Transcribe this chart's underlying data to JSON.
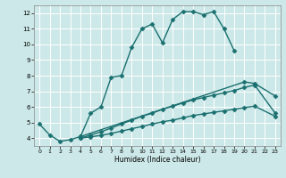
{
  "xlabel": "Humidex (Indice chaleur)",
  "xlim": [
    -0.5,
    23.5
  ],
  "ylim": [
    3.5,
    12.5
  ],
  "xticks": [
    0,
    1,
    2,
    3,
    4,
    5,
    6,
    7,
    8,
    9,
    10,
    11,
    12,
    13,
    14,
    15,
    16,
    17,
    18,
    19,
    20,
    21,
    22,
    23
  ],
  "yticks": [
    4,
    5,
    6,
    7,
    8,
    9,
    10,
    11,
    12
  ],
  "bg_color": "#cde8e8",
  "line_color": "#1a7070",
  "grid_color": "#ffffff",
  "series": [
    {
      "x": [
        0,
        1,
        2,
        3,
        4,
        5,
        6,
        7,
        8,
        9,
        10,
        11,
        12,
        13,
        14,
        15,
        16,
        17,
        18,
        19
      ],
      "y": [
        4.9,
        4.2,
        3.8,
        3.9,
        4.1,
        5.6,
        6.0,
        7.9,
        8.0,
        9.8,
        11.0,
        11.3,
        10.1,
        11.6,
        12.1,
        12.1,
        11.9,
        12.1,
        11.0,
        9.6
      ],
      "marker": "D",
      "markersize": 2.5,
      "lw": 1.0
    },
    {
      "x": [
        4,
        20,
        21,
        23
      ],
      "y": [
        4.1,
        7.6,
        7.5,
        6.7
      ],
      "marker": "D",
      "markersize": 2.5,
      "lw": 1.0
    },
    {
      "x": [
        4,
        5,
        6,
        7,
        8,
        9,
        10,
        11,
        12,
        13,
        14,
        15,
        16,
        17,
        18,
        19,
        20,
        21,
        23
      ],
      "y": [
        4.0,
        4.2,
        4.4,
        4.65,
        4.9,
        5.15,
        5.4,
        5.6,
        5.85,
        6.05,
        6.25,
        6.45,
        6.6,
        6.75,
        6.9,
        7.05,
        7.25,
        7.4,
        5.6
      ],
      "marker": "D",
      "markersize": 2.5,
      "lw": 1.0
    },
    {
      "x": [
        4,
        5,
        6,
        7,
        8,
        9,
        10,
        11,
        12,
        13,
        14,
        15,
        16,
        17,
        18,
        19,
        20,
        21,
        23
      ],
      "y": [
        4.0,
        4.08,
        4.18,
        4.3,
        4.45,
        4.6,
        4.75,
        4.9,
        5.05,
        5.15,
        5.3,
        5.45,
        5.55,
        5.65,
        5.75,
        5.85,
        5.95,
        6.05,
        5.4
      ],
      "marker": "D",
      "markersize": 2.5,
      "lw": 1.0
    }
  ]
}
